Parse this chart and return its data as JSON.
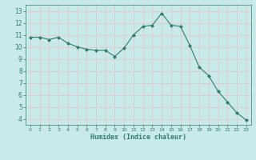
{
  "x": [
    0,
    1,
    2,
    3,
    4,
    5,
    6,
    7,
    8,
    9,
    10,
    11,
    12,
    13,
    14,
    15,
    16,
    17,
    18,
    19,
    20,
    21,
    22,
    23
  ],
  "y": [
    10.8,
    10.8,
    10.6,
    10.8,
    10.3,
    10.0,
    9.8,
    9.7,
    9.7,
    9.2,
    9.9,
    11.0,
    11.7,
    11.8,
    12.8,
    11.8,
    11.7,
    10.1,
    8.3,
    7.6,
    6.3,
    5.4,
    4.5,
    3.9
  ],
  "line_color": "#2e7d6e",
  "marker": "D",
  "marker_size": 2.0,
  "bg_color": "#c8eaea",
  "grid_color": "#e8c8c8",
  "xlabel": "Humidex (Indice chaleur)",
  "ylim": [
    3.5,
    13.5
  ],
  "xlim": [
    -0.5,
    23.5
  ],
  "yticks": [
    4,
    5,
    6,
    7,
    8,
    9,
    10,
    11,
    12,
    13
  ],
  "xticks": [
    0,
    1,
    2,
    3,
    4,
    5,
    6,
    7,
    8,
    9,
    10,
    11,
    12,
    13,
    14,
    15,
    16,
    17,
    18,
    19,
    20,
    21,
    22,
    23
  ]
}
